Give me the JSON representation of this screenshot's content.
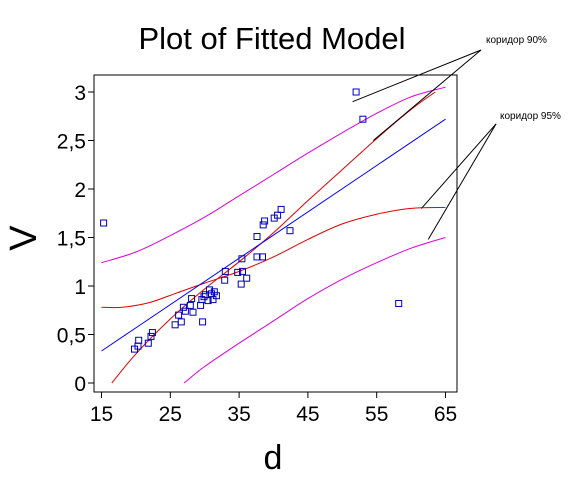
{
  "chart_data": {
    "type": "scatter",
    "title": "Plot of Fitted Model",
    "xlabel": "d",
    "ylabel": "V",
    "xlim": [
      14,
      67
    ],
    "ylim": [
      -0.08,
      3.05
    ],
    "x_ticks": [
      15,
      25,
      35,
      45,
      55,
      65
    ],
    "y_ticks": [
      0,
      0.5,
      1,
      1.5,
      2,
      2.5,
      3
    ],
    "y_tick_labels": [
      "0",
      "0,5",
      "1",
      "1,5",
      "2",
      "2,5",
      "3"
    ],
    "grid": false,
    "colors": {
      "points": "#0000bb",
      "fit": "#0000ff",
      "confidence_band": "#e00000",
      "prediction_band": "#dd00dd",
      "annotation": "#000000"
    },
    "series": [
      {
        "kind": "points",
        "x": [
          15.3,
          19.8,
          20.3,
          20.4,
          21.8,
          22.2,
          22.4,
          25.7,
          26.2,
          26.6,
          26.9,
          27.2,
          27.9,
          28.1,
          28.3,
          29.4,
          29.6,
          29.7,
          29.9,
          30.1,
          30.5,
          30.7,
          31.0,
          31.2,
          31.4,
          31.7,
          32.9,
          33.0,
          34.8,
          35.3,
          35.4,
          35.5,
          36.1,
          37.6,
          37.6,
          38.4,
          38.5,
          38.7,
          40.1,
          40.6,
          41.1,
          42.4,
          52.0,
          53.0,
          58.2
        ],
        "y": [
          1.65,
          0.35,
          0.38,
          0.44,
          0.41,
          0.48,
          0.52,
          0.6,
          0.7,
          0.63,
          0.78,
          0.74,
          0.8,
          0.87,
          0.73,
          0.8,
          0.86,
          0.63,
          0.89,
          0.91,
          0.85,
          0.96,
          0.92,
          0.86,
          0.94,
          0.9,
          1.06,
          1.15,
          1.14,
          1.02,
          1.28,
          1.15,
          1.08,
          1.3,
          1.51,
          1.3,
          1.63,
          1.67,
          1.7,
          1.73,
          1.79,
          1.57,
          3.0,
          2.72,
          0.82
        ]
      },
      {
        "kind": "fit",
        "x": [
          15,
          65
        ],
        "y": [
          0.33,
          2.72
        ]
      },
      {
        "kind": "confidence_band_upper",
        "x": [
          16.5,
          20,
          25,
          30,
          35,
          40,
          45,
          50,
          55,
          60,
          63.5
        ],
        "y": [
          0.0,
          0.3,
          0.66,
          0.97,
          1.25,
          1.55,
          1.88,
          2.2,
          2.52,
          2.82,
          3.0
        ]
      },
      {
        "kind": "confidence_band_lower",
        "x": [
          15,
          18,
          22,
          26,
          30,
          35,
          40,
          45,
          50,
          55,
          60,
          65
        ],
        "y": [
          0.78,
          0.78,
          0.83,
          0.93,
          1.03,
          1.15,
          1.3,
          1.48,
          1.64,
          1.74,
          1.8,
          1.81
        ]
      },
      {
        "kind": "prediction_band_upper",
        "x": [
          15,
          20,
          25,
          30,
          35,
          40,
          45,
          50,
          55,
          60,
          65
        ],
        "y": [
          1.24,
          1.35,
          1.52,
          1.71,
          1.93,
          2.15,
          2.37,
          2.58,
          2.78,
          2.95,
          3.05
        ]
      },
      {
        "kind": "prediction_band_lower",
        "x": [
          27,
          30,
          35,
          40,
          45,
          50,
          55,
          60,
          65
        ],
        "y": [
          0.0,
          0.17,
          0.41,
          0.64,
          0.87,
          1.07,
          1.24,
          1.39,
          1.5
        ]
      }
    ],
    "annotations": [
      {
        "text": "коридор 90%",
        "pointer_targets": [
          [
            51.5,
            2.9
          ],
          [
            54.5,
            2.5
          ]
        ]
      },
      {
        "text": "коридор 95%",
        "pointer_targets": [
          [
            61.5,
            1.8
          ],
          [
            62.5,
            1.48
          ]
        ]
      }
    ]
  }
}
